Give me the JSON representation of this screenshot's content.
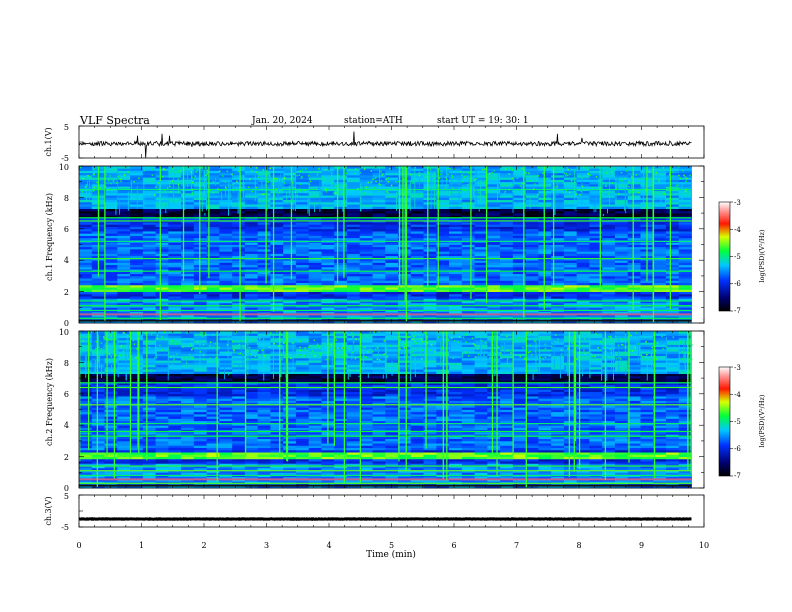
{
  "header": {
    "title": "VLF  Spectra",
    "date": "Jan. 20, 2024",
    "station": "station=ATH",
    "start": "start  UT  =   19: 30: 1"
  },
  "chart_data": [
    {
      "id": "ch1-waveform",
      "type": "line",
      "ylabel": "ch.1(V)",
      "ylim": [
        -5,
        5
      ],
      "yticks": [
        "5",
        "-5"
      ],
      "xlim": [
        0,
        10
      ],
      "trace_level_v": -0.5,
      "trace_color": "#000000"
    },
    {
      "id": "ch1-spectrogram",
      "type": "heatmap",
      "ylabel": "ch.1\nFrequency  (kHz)",
      "ylim": [
        0,
        10
      ],
      "yticks": [
        "0",
        "2",
        "4",
        "6",
        "8",
        "10"
      ],
      "xlim": [
        0,
        9.8
      ],
      "colorbar": {
        "label": "log(PSD)(V²/Hz)",
        "range": [
          -7,
          -3
        ],
        "ticks": [
          "-3",
          "-4",
          "-5",
          "-6",
          "-7"
        ]
      },
      "features": {
        "strong_band_khz": [
          2.0,
          2.4
        ],
        "steady_lines_khz": [
          0.3,
          0.55,
          0.8,
          1.1,
          1.4,
          3.3,
          4.1,
          5.2,
          6.5,
          6.7,
          8.5
        ]
      }
    },
    {
      "id": "ch2-spectrogram",
      "type": "heatmap",
      "ylabel": "ch.2\nFrequency  (kHz)",
      "ylim": [
        0,
        10
      ],
      "yticks": [
        "0",
        "2",
        "4",
        "6",
        "8",
        "10"
      ],
      "xlim": [
        0,
        9.8
      ],
      "colorbar": {
        "label": "log(PSD)(V²/Hz)",
        "range": [
          -7,
          -3
        ],
        "ticks": [
          "-3",
          "-4",
          "-5",
          "-6",
          "-7"
        ]
      },
      "features": {
        "strong_band_khz": [
          1.8,
          2.3
        ],
        "steady_lines_khz": [
          0.3,
          0.55,
          0.8,
          1.1,
          1.4,
          3.3,
          3.6,
          4.1,
          5.3,
          6.4,
          6.7
        ]
      }
    },
    {
      "id": "ch3-waveform",
      "type": "line",
      "ylabel": "ch.3(V)",
      "ylim": [
        -5,
        5
      ],
      "yticks": [
        "5",
        "-5"
      ],
      "xlim": [
        0,
        10
      ],
      "xlabel": "Time  (min)",
      "xticks": [
        "0",
        "1",
        "2",
        "3",
        "4",
        "5",
        "6",
        "7",
        "8",
        "9",
        "10"
      ],
      "trace_level_v": -2.5,
      "trace_color": "#000000"
    }
  ]
}
